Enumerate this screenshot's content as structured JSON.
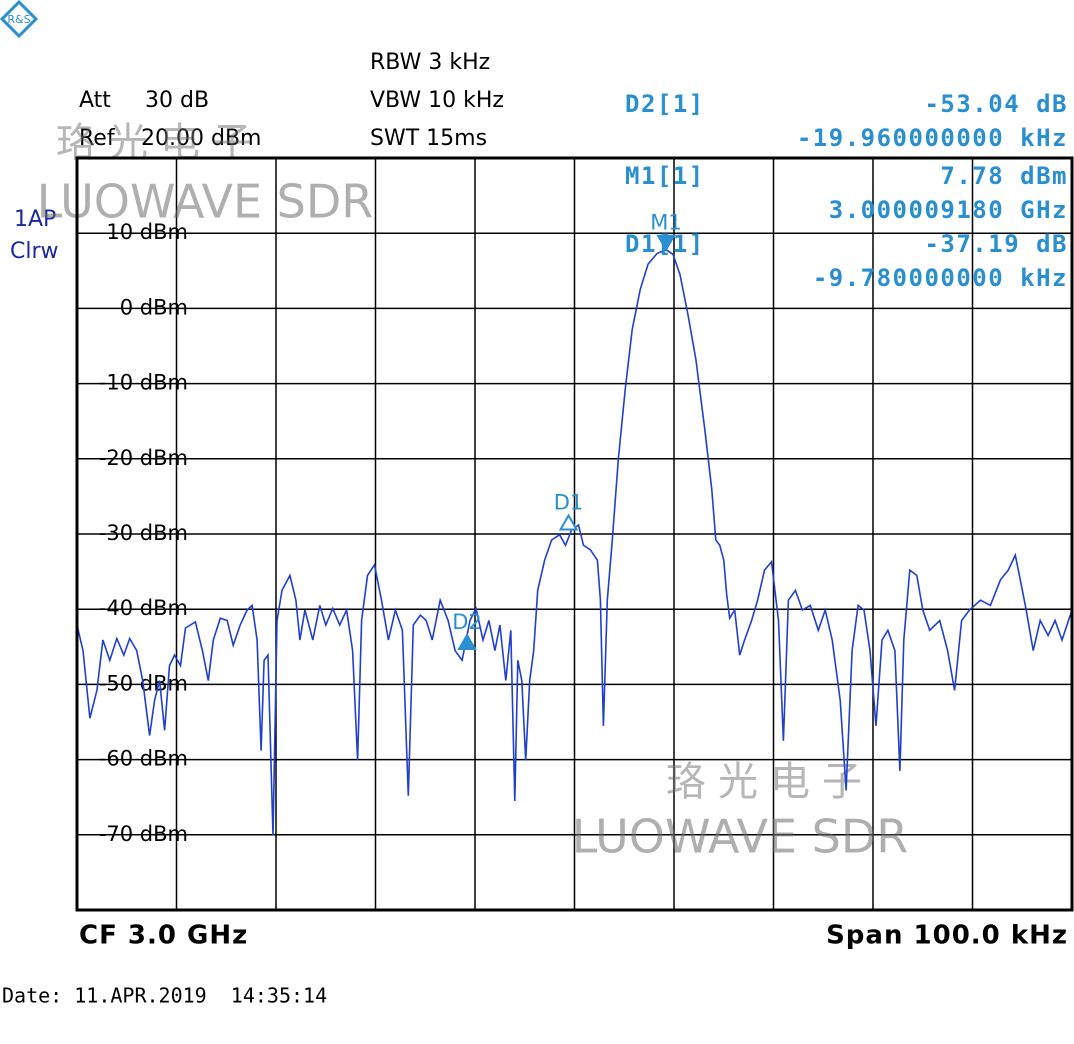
{
  "header": {
    "att_label": "Att",
    "att_value": "30 dB",
    "ref_label": "Ref",
    "ref_value": "20.00 dBm",
    "rbw": "RBW 3 kHz",
    "vbw": "VBW 10 kHz",
    "swt": "SWT 15ms",
    "trace_mode": "1AP",
    "trace_detector": "Clrw"
  },
  "readouts": [
    {
      "label": "D2[1]",
      "lines": [
        "-53.04 dB",
        "-19.960000000 kHz"
      ]
    },
    {
      "label": "M1[1]",
      "lines": [
        "7.78 dBm",
        "3.000009180 GHz"
      ]
    },
    {
      "label": "D1[1]",
      "lines": [
        "-37.19 dB",
        "-9.780000000 kHz"
      ]
    }
  ],
  "footer": {
    "center": "CF 3.0 GHz",
    "span": "Span 100.0 kHz",
    "date": "Date: 11.APR.2019  14:35:14"
  },
  "watermarks": [
    {
      "chinese": "珞光电子",
      "latin": "LUOWAVE SDR"
    },
    {
      "chinese": "珞光电子",
      "latin": "LUOWAVE SDR"
    }
  ],
  "chart_data": {
    "type": "line",
    "color": "#1f3fcf",
    "marker_color": "#2a8fd0",
    "xlim": [
      -50,
      50
    ],
    "xticks": [
      -40,
      -30,
      -20,
      -10,
      0,
      10,
      20,
      30,
      40
    ],
    "ylim": [
      -80,
      20
    ],
    "yticks": [
      {
        "value": 10,
        "label": "10 dBm"
      },
      {
        "value": 0,
        "label": "0 dBm"
      },
      {
        "value": -10,
        "label": "-10 dBm"
      },
      {
        "value": -20,
        "label": "-20 dBm"
      },
      {
        "value": -30,
        "label": "-30 dBm"
      },
      {
        "value": -40,
        "label": "-40 dBm"
      },
      {
        "value": -50,
        "label": "-50 dBm"
      },
      {
        "value": -60,
        "label": "-60 dBm"
      },
      {
        "value": -70,
        "label": "-70 dBm"
      }
    ],
    "grid": true,
    "x": [
      -50.0,
      -49.4,
      -48.7,
      -48.0,
      -47.4,
      -46.7,
      -46.0,
      -45.3,
      -44.7,
      -44.0,
      -43.4,
      -42.7,
      -42.2,
      -41.7,
      -41.2,
      -40.7,
      -40.2,
      -39.6,
      -39.1,
      -38.1,
      -37.4,
      -36.8,
      -36.3,
      -35.6,
      -34.9,
      -34.3,
      -33.6,
      -32.9,
      -32.4,
      -31.9,
      -31.5,
      -31.2,
      -30.8,
      -30.3,
      -29.9,
      -29.4,
      -28.6,
      -28.0,
      -27.6,
      -27.1,
      -26.3,
      -25.6,
      -25.0,
      -24.3,
      -23.6,
      -22.9,
      -22.3,
      -21.8,
      -21.4,
      -20.8,
      -20.1,
      -19.4,
      -18.7,
      -18.0,
      -17.3,
      -16.7,
      -16.2,
      -15.5,
      -14.9,
      -14.3,
      -13.5,
      -12.7,
      -12.0,
      -11.3,
      -10.5,
      -9.9,
      -9.2,
      -8.6,
      -8.0,
      -7.5,
      -6.9,
      -6.4,
      -6.0,
      -5.7,
      -5.3,
      -4.9,
      -4.5,
      -4.1,
      -3.7,
      -3.0,
      -2.3,
      -1.5,
      -0.9,
      -0.3,
      0.4,
      0.9,
      1.6,
      2.3,
      2.6,
      2.9,
      3.3,
      3.8,
      4.4,
      5.1,
      5.8,
      6.6,
      7.4,
      8.3,
      9.2,
      9.9,
      10.6,
      11.4,
      12.2,
      13.1,
      13.8,
      14.2,
      14.6,
      15.0,
      15.3,
      15.6,
      16.1,
      16.6,
      17.1,
      17.8,
      18.4,
      19.1,
      19.8,
      20.5,
      21.0,
      21.5,
      22.2,
      22.9,
      23.7,
      24.5,
      25.2,
      25.9,
      26.7,
      27.3,
      27.9,
      28.5,
      29.1,
      29.7,
      30.3,
      30.9,
      31.5,
      32.2,
      32.7,
      33.1,
      33.7,
      34.4,
      35.0,
      35.7,
      36.7,
      37.5,
      38.2,
      38.9,
      39.7,
      40.8,
      41.8,
      42.8,
      43.6,
      44.3,
      44.8,
      45.4,
      46.1,
      46.8,
      47.6,
      48.3,
      49.0,
      50.0
    ],
    "values": [
      -42.1,
      -45.5,
      -54.5,
      -50.8,
      -44.1,
      -46.8,
      -43.9,
      -46.1,
      -43.9,
      -45.5,
      -49.5,
      -56.8,
      -52.1,
      -49.5,
      -56.1,
      -47.5,
      -46.1,
      -47.5,
      -42.5,
      -41.7,
      -45.5,
      -49.5,
      -44.1,
      -41.2,
      -41.5,
      -44.8,
      -42.1,
      -40.1,
      -39.5,
      -44.1,
      -58.8,
      -46.8,
      -46.1,
      -70.1,
      -41.5,
      -37.5,
      -35.5,
      -38.8,
      -44.1,
      -40.1,
      -44.1,
      -39.5,
      -42.1,
      -39.9,
      -42.1,
      -40.1,
      -45.5,
      -60.1,
      -41.5,
      -35.5,
      -34.1,
      -38.8,
      -44.1,
      -40.1,
      -42.8,
      -64.8,
      -42.1,
      -40.8,
      -41.5,
      -44.1,
      -38.8,
      -41.5,
      -45.5,
      -46.8,
      -41.5,
      -39.9,
      -44.1,
      -41.5,
      -45.5,
      -42.1,
      -49.5,
      -42.8,
      -65.5,
      -46.8,
      -49.5,
      -60.1,
      -49.5,
      -45.5,
      -37.5,
      -33.5,
      -30.8,
      -30.1,
      -31.5,
      -29.5,
      -28.8,
      -31.5,
      -32.1,
      -33.5,
      -38.8,
      -55.5,
      -38.8,
      -30.8,
      -20.1,
      -10.8,
      -2.8,
      2.5,
      5.9,
      7.3,
      7.8,
      7.2,
      4.5,
      -0.8,
      -6.8,
      -16.1,
      -24.1,
      -30.8,
      -31.5,
      -33.5,
      -38.1,
      -41.2,
      -40.1,
      -46.1,
      -44.1,
      -41.5,
      -38.8,
      -34.8,
      -33.7,
      -41.5,
      -57.5,
      -38.8,
      -37.5,
      -40.1,
      -39.5,
      -42.8,
      -40.1,
      -44.1,
      -52.1,
      -64.1,
      -45.5,
      -39.5,
      -40.1,
      -45.5,
      -55.5,
      -44.1,
      -42.8,
      -45.5,
      -61.5,
      -44.1,
      -34.8,
      -35.5,
      -40.1,
      -42.8,
      -41.5,
      -45.5,
      -50.8,
      -41.5,
      -40.1,
      -38.8,
      -39.5,
      -36.1,
      -34.8,
      -32.8,
      -36.1,
      -40.1,
      -45.5,
      -41.5,
      -43.5,
      -41.5,
      -44.1,
      -40.1
    ],
    "markers": [
      {
        "label": "M1",
        "x": 9.2,
        "y": 7.8,
        "shape": "down-filled"
      },
      {
        "label": "D1",
        "x": -0.6,
        "y": -29.4,
        "shape": "up-open"
      },
      {
        "label": "D2",
        "x": -10.8,
        "y": -45.3,
        "shape": "up-filled"
      }
    ]
  }
}
